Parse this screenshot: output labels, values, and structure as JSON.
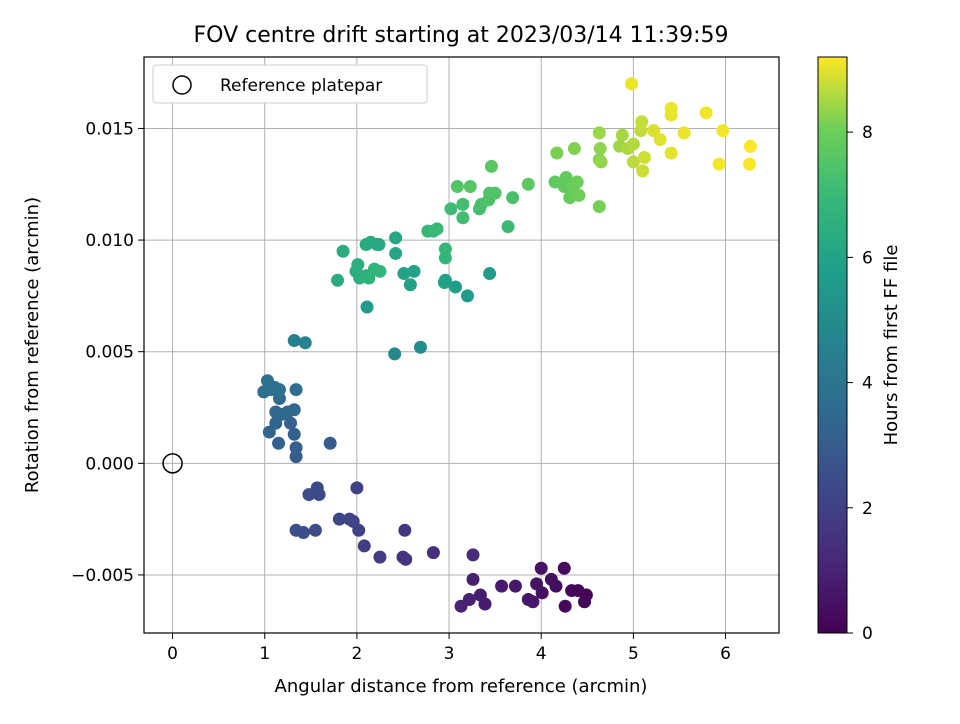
{
  "chart_data": {
    "type": "scatter",
    "title": "FOV centre drift starting at 2023/03/14 11:39:59",
    "xlabel": "Angular distance from reference (arcmin)",
    "ylabel": "Rotation from reference (arcmin)",
    "xlim": [
      -0.31,
      6.58
    ],
    "ylim": [
      -0.0076,
      0.0182
    ],
    "x_ticks": [
      0,
      1,
      2,
      3,
      4,
      5,
      6
    ],
    "x_tick_labels": [
      "0",
      "1",
      "2",
      "3",
      "4",
      "5",
      "6"
    ],
    "y_ticks": [
      -0.005,
      0.0,
      0.005,
      0.01,
      0.015
    ],
    "y_tick_labels": [
      "−0.005",
      "0.000",
      "0.005",
      "0.010",
      "0.015"
    ],
    "grid": true,
    "legend": {
      "placement": "top-left",
      "entries": [
        "Reference platepar"
      ]
    },
    "reference_point": {
      "x": 0,
      "y": 0
    },
    "colorbar": {
      "label": "Hours from first FF file",
      "colormap": "viridis",
      "range": [
        0,
        9.2
      ],
      "ticks": [
        0,
        2,
        4,
        6,
        8
      ],
      "tick_labels": [
        "0",
        "2",
        "4",
        "6",
        "8"
      ]
    },
    "points": [
      {
        "x": 4.49,
        "y": -0.0059,
        "h": 0.05
      },
      {
        "x": 4.47,
        "y": -0.0062,
        "h": 0.1
      },
      {
        "x": 4.4,
        "y": -0.0057,
        "h": 0.15
      },
      {
        "x": 4.33,
        "y": -0.0057,
        "h": 0.2
      },
      {
        "x": 4.26,
        "y": -0.0064,
        "h": 0.25
      },
      {
        "x": 4.25,
        "y": -0.0047,
        "h": 0.3
      },
      {
        "x": 4.16,
        "y": -0.0055,
        "h": 0.35
      },
      {
        "x": 4.11,
        "y": -0.0052,
        "h": 0.4
      },
      {
        "x": 4.01,
        "y": -0.0058,
        "h": 0.45
      },
      {
        "x": 4.0,
        "y": -0.0047,
        "h": 0.5
      },
      {
        "x": 3.95,
        "y": -0.0054,
        "h": 0.55
      },
      {
        "x": 3.91,
        "y": -0.0062,
        "h": 0.6
      },
      {
        "x": 3.86,
        "y": -0.0061,
        "h": 0.65
      },
      {
        "x": 3.72,
        "y": -0.0055,
        "h": 0.7
      },
      {
        "x": 3.57,
        "y": -0.0055,
        "h": 0.75
      },
      {
        "x": 3.39,
        "y": -0.0063,
        "h": 0.8
      },
      {
        "x": 3.34,
        "y": -0.0059,
        "h": 0.85
      },
      {
        "x": 3.26,
        "y": -0.0052,
        "h": 0.9
      },
      {
        "x": 3.22,
        "y": -0.0061,
        "h": 0.95
      },
      {
        "x": 3.13,
        "y": -0.0064,
        "h": 1.0
      },
      {
        "x": 3.26,
        "y": -0.0041,
        "h": 1.3
      },
      {
        "x": 2.83,
        "y": -0.004,
        "h": 1.4
      },
      {
        "x": 2.53,
        "y": -0.0043,
        "h": 1.5
      },
      {
        "x": 2.5,
        "y": -0.0042,
        "h": 1.6
      },
      {
        "x": 2.52,
        "y": -0.003,
        "h": 1.7
      },
      {
        "x": 2.25,
        "y": -0.0042,
        "h": 1.8
      },
      {
        "x": 2.08,
        "y": -0.0037,
        "h": 1.9
      },
      {
        "x": 2.0,
        "y": -0.0011,
        "h": 2.0
      },
      {
        "x": 2.02,
        "y": -0.003,
        "h": 2.05
      },
      {
        "x": 1.96,
        "y": -0.0026,
        "h": 2.1
      },
      {
        "x": 1.92,
        "y": -0.0025,
        "h": 2.15
      },
      {
        "x": 1.81,
        "y": -0.0025,
        "h": 2.2
      },
      {
        "x": 1.59,
        "y": -0.0014,
        "h": 2.3
      },
      {
        "x": 1.57,
        "y": -0.0011,
        "h": 2.35
      },
      {
        "x": 1.48,
        "y": -0.0014,
        "h": 2.4
      },
      {
        "x": 1.55,
        "y": -0.003,
        "h": 2.45
      },
      {
        "x": 1.42,
        "y": -0.0031,
        "h": 2.5
      },
      {
        "x": 1.34,
        "y": -0.003,
        "h": 2.55
      },
      {
        "x": 1.71,
        "y": 0.0009,
        "h": 3.0
      },
      {
        "x": 1.34,
        "y": 0.0003,
        "h": 3.05
      },
      {
        "x": 1.34,
        "y": 0.0007,
        "h": 3.1
      },
      {
        "x": 1.32,
        "y": 0.0013,
        "h": 3.15
      },
      {
        "x": 1.28,
        "y": 0.0018,
        "h": 3.2
      },
      {
        "x": 1.15,
        "y": 0.0009,
        "h": 3.25
      },
      {
        "x": 1.05,
        "y": 0.0014,
        "h": 3.3
      },
      {
        "x": 1.12,
        "y": 0.0018,
        "h": 3.35
      },
      {
        "x": 1.12,
        "y": 0.0023,
        "h": 3.4
      },
      {
        "x": 1.19,
        "y": 0.0022,
        "h": 3.45
      },
      {
        "x": 1.25,
        "y": 0.0023,
        "h": 3.5
      },
      {
        "x": 1.32,
        "y": 0.0024,
        "h": 3.55
      },
      {
        "x": 1.16,
        "y": 0.0029,
        "h": 3.6
      },
      {
        "x": 1.34,
        "y": 0.0033,
        "h": 3.65
      },
      {
        "x": 0.99,
        "y": 0.0032,
        "h": 3.7
      },
      {
        "x": 1.07,
        "y": 0.0033,
        "h": 3.75
      },
      {
        "x": 1.03,
        "y": 0.0037,
        "h": 3.8
      },
      {
        "x": 1.11,
        "y": 0.0034,
        "h": 3.85
      },
      {
        "x": 1.16,
        "y": 0.0033,
        "h": 3.9
      },
      {
        "x": 1.32,
        "y": 0.0055,
        "h": 4.5
      },
      {
        "x": 1.44,
        "y": 0.0054,
        "h": 4.6
      },
      {
        "x": 2.41,
        "y": 0.0049,
        "h": 4.9
      },
      {
        "x": 2.69,
        "y": 0.0052,
        "h": 5.0
      },
      {
        "x": 2.11,
        "y": 0.007,
        "h": 5.6
      },
      {
        "x": 3.2,
        "y": 0.0075,
        "h": 5.65
      },
      {
        "x": 3.44,
        "y": 0.0085,
        "h": 5.7
      },
      {
        "x": 3.07,
        "y": 0.0079,
        "h": 5.75
      },
      {
        "x": 2.96,
        "y": 0.0082,
        "h": 5.8
      },
      {
        "x": 2.95,
        "y": 0.0081,
        "h": 5.85
      },
      {
        "x": 2.58,
        "y": 0.008,
        "h": 5.9
      },
      {
        "x": 2.51,
        "y": 0.0085,
        "h": 5.95
      },
      {
        "x": 2.62,
        "y": 0.0086,
        "h": 6.0
      },
      {
        "x": 2.42,
        "y": 0.0094,
        "h": 6.05
      },
      {
        "x": 2.42,
        "y": 0.0101,
        "h": 6.1
      },
      {
        "x": 2.24,
        "y": 0.0098,
        "h": 6.15
      },
      {
        "x": 2.22,
        "y": 0.0098,
        "h": 6.2
      },
      {
        "x": 2.15,
        "y": 0.0099,
        "h": 6.25
      },
      {
        "x": 2.1,
        "y": 0.0098,
        "h": 6.3
      },
      {
        "x": 1.85,
        "y": 0.0095,
        "h": 6.35
      },
      {
        "x": 1.79,
        "y": 0.0082,
        "h": 6.4
      },
      {
        "x": 1.99,
        "y": 0.0086,
        "h": 6.45
      },
      {
        "x": 2.01,
        "y": 0.0089,
        "h": 6.5
      },
      {
        "x": 2.03,
        "y": 0.0083,
        "h": 6.55
      },
      {
        "x": 2.1,
        "y": 0.0084,
        "h": 6.6
      },
      {
        "x": 2.13,
        "y": 0.0083,
        "h": 6.65
      },
      {
        "x": 2.19,
        "y": 0.0087,
        "h": 6.7
      },
      {
        "x": 2.25,
        "y": 0.0086,
        "h": 6.75
      },
      {
        "x": 2.96,
        "y": 0.0092,
        "h": 6.8
      },
      {
        "x": 2.96,
        "y": 0.0096,
        "h": 6.85
      },
      {
        "x": 2.77,
        "y": 0.0104,
        "h": 6.9
      },
      {
        "x": 2.83,
        "y": 0.0104,
        "h": 6.95
      },
      {
        "x": 2.87,
        "y": 0.0105,
        "h": 7.0
      },
      {
        "x": 3.64,
        "y": 0.0106,
        "h": 7.05
      },
      {
        "x": 3.02,
        "y": 0.0114,
        "h": 7.1
      },
      {
        "x": 3.15,
        "y": 0.011,
        "h": 7.15
      },
      {
        "x": 3.15,
        "y": 0.0116,
        "h": 7.2
      },
      {
        "x": 3.33,
        "y": 0.0114,
        "h": 7.25
      },
      {
        "x": 3.35,
        "y": 0.0116,
        "h": 7.3
      },
      {
        "x": 3.69,
        "y": 0.0119,
        "h": 7.35
      },
      {
        "x": 3.43,
        "y": 0.0118,
        "h": 7.4
      },
      {
        "x": 3.44,
        "y": 0.0121,
        "h": 7.45
      },
      {
        "x": 3.5,
        "y": 0.0121,
        "h": 7.5
      },
      {
        "x": 3.09,
        "y": 0.0124,
        "h": 7.55
      },
      {
        "x": 3.23,
        "y": 0.0124,
        "h": 7.6
      },
      {
        "x": 3.46,
        "y": 0.0133,
        "h": 7.65
      },
      {
        "x": 3.86,
        "y": 0.0125,
        "h": 7.7
      },
      {
        "x": 4.15,
        "y": 0.0126,
        "h": 7.75
      },
      {
        "x": 4.25,
        "y": 0.0124,
        "h": 7.8
      },
      {
        "x": 4.27,
        "y": 0.0128,
        "h": 7.85
      },
      {
        "x": 4.31,
        "y": 0.0119,
        "h": 7.9
      },
      {
        "x": 4.35,
        "y": 0.0124,
        "h": 7.95
      },
      {
        "x": 4.39,
        "y": 0.0126,
        "h": 8.0
      },
      {
        "x": 4.41,
        "y": 0.012,
        "h": 8.05
      },
      {
        "x": 4.63,
        "y": 0.0115,
        "h": 8.1
      },
      {
        "x": 4.17,
        "y": 0.0139,
        "h": 8.15
      },
      {
        "x": 4.36,
        "y": 0.0141,
        "h": 8.2
      },
      {
        "x": 4.63,
        "y": 0.0136,
        "h": 8.25
      },
      {
        "x": 4.64,
        "y": 0.0141,
        "h": 8.3
      },
      {
        "x": 4.65,
        "y": 0.0135,
        "h": 8.35
      },
      {
        "x": 4.63,
        "y": 0.0148,
        "h": 8.4
      },
      {
        "x": 4.85,
        "y": 0.0142,
        "h": 8.45
      },
      {
        "x": 4.88,
        "y": 0.0147,
        "h": 8.5
      },
      {
        "x": 4.94,
        "y": 0.0141,
        "h": 8.55
      },
      {
        "x": 5.0,
        "y": 0.0143,
        "h": 8.6
      },
      {
        "x": 5.0,
        "y": 0.0135,
        "h": 8.65
      },
      {
        "x": 5.08,
        "y": 0.0149,
        "h": 8.7
      },
      {
        "x": 5.09,
        "y": 0.0153,
        "h": 8.75
      },
      {
        "x": 5.1,
        "y": 0.0131,
        "h": 8.8
      },
      {
        "x": 5.12,
        "y": 0.0137,
        "h": 8.85
      },
      {
        "x": 5.22,
        "y": 0.0149,
        "h": 8.9
      },
      {
        "x": 5.29,
        "y": 0.0145,
        "h": 8.95
      },
      {
        "x": 5.41,
        "y": 0.0139,
        "h": 9.0
      },
      {
        "x": 5.41,
        "y": 0.0156,
        "h": 9.02
      },
      {
        "x": 5.41,
        "y": 0.0159,
        "h": 9.04
      },
      {
        "x": 5.55,
        "y": 0.0148,
        "h": 9.06
      },
      {
        "x": 4.98,
        "y": 0.017,
        "h": 9.08
      },
      {
        "x": 5.79,
        "y": 0.0157,
        "h": 9.1
      },
      {
        "x": 5.97,
        "y": 0.0149,
        "h": 9.12
      },
      {
        "x": 5.93,
        "y": 0.0134,
        "h": 9.14
      },
      {
        "x": 6.26,
        "y": 0.0134,
        "h": 9.16
      },
      {
        "x": 6.27,
        "y": 0.0142,
        "h": 9.18
      }
    ]
  }
}
